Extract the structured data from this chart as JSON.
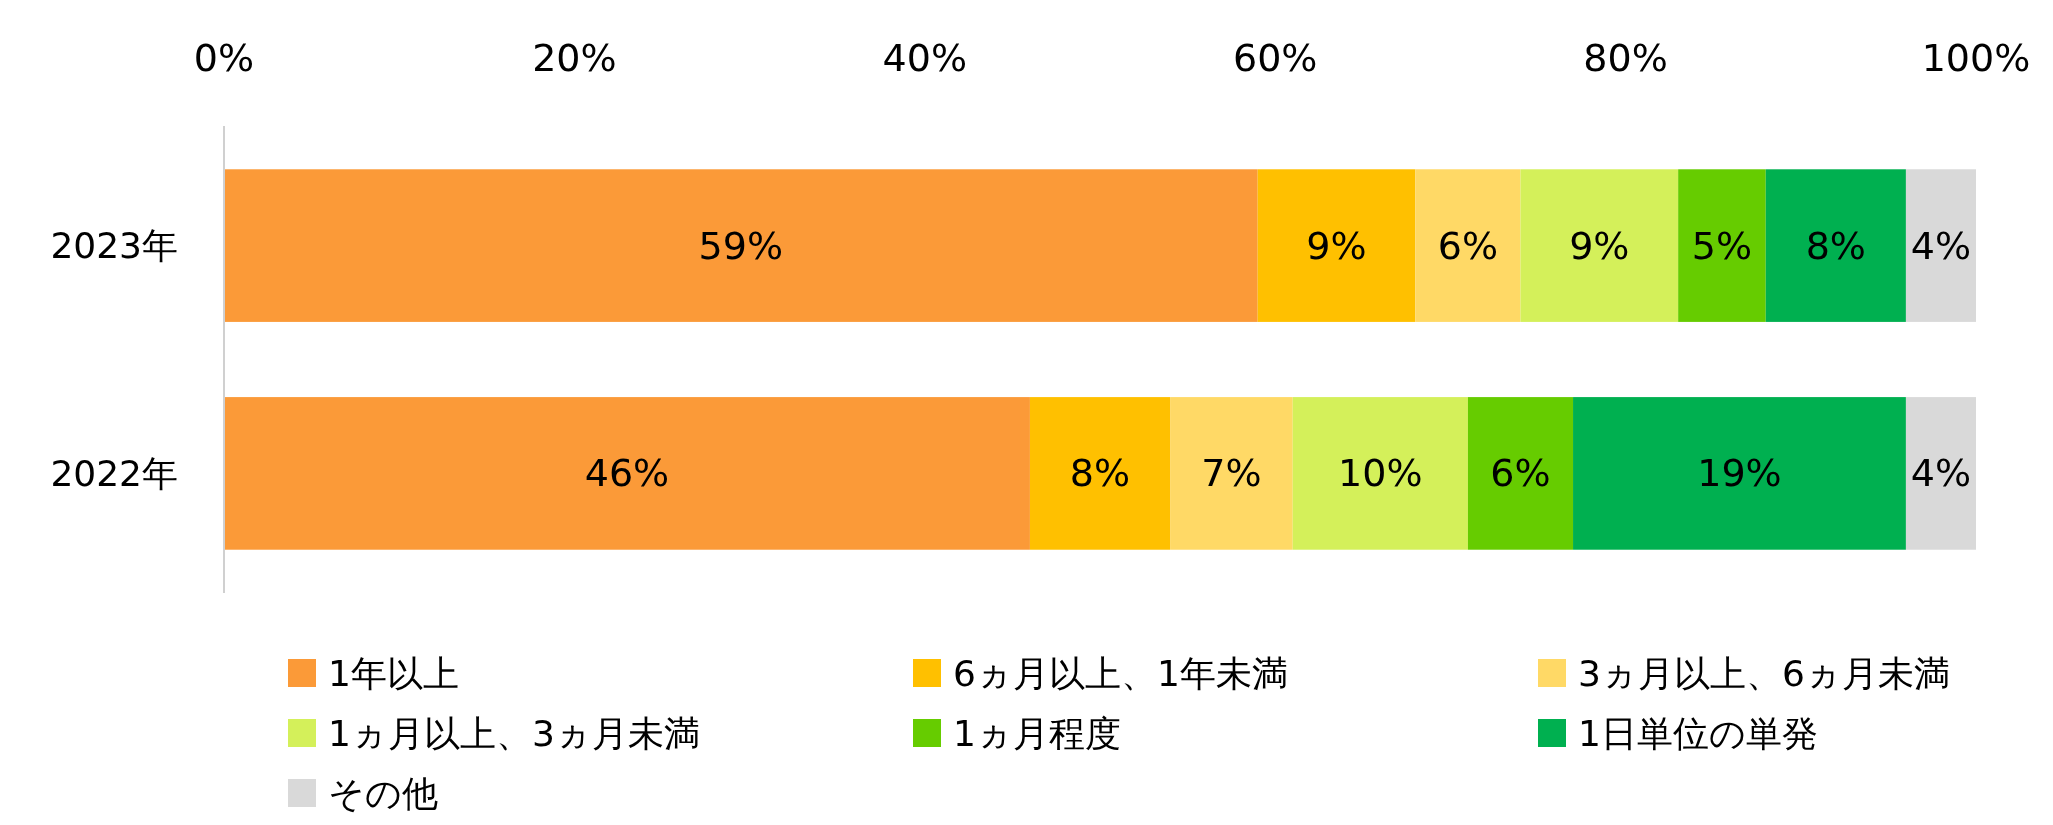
{
  "chart_data": {
    "type": "bar",
    "orientation": "horizontal",
    "stacked": true,
    "categories": [
      "2023年",
      "2022年"
    ],
    "xlim": [
      0,
      100
    ],
    "xticks": [
      {
        "value": 0,
        "label": "0%"
      },
      {
        "value": 20,
        "label": "20%"
      },
      {
        "value": 40,
        "label": "40%"
      },
      {
        "value": 60,
        "label": "60%"
      },
      {
        "value": 80,
        "label": "80%"
      },
      {
        "value": 100,
        "label": "100%"
      }
    ],
    "grid": false,
    "legend": "bottom",
    "series": [
      {
        "name": "1年以上",
        "color": "#fb9a38",
        "values": [
          59,
          46
        ],
        "value_labels": [
          "59%",
          "46%"
        ]
      },
      {
        "name": "6ヵ月以上、1年未満",
        "color": "#ffc000",
        "values": [
          9,
          8
        ],
        "value_labels": [
          "9%",
          "8%"
        ]
      },
      {
        "name": "3ヵ月以上、6ヵ月未満",
        "color": "#ffd966",
        "values": [
          6,
          7
        ],
        "value_labels": [
          "6%",
          "7%"
        ]
      },
      {
        "name": "1ヵ月以上、3ヵ月未満",
        "color": "#d4f05a",
        "values": [
          9,
          10
        ],
        "value_labels": [
          "9%",
          "10%"
        ]
      },
      {
        "name": "1ヵ月程度",
        "color": "#66cc00",
        "values": [
          5,
          6
        ],
        "value_labels": [
          "5%",
          "6%"
        ]
      },
      {
        "name": "1日単位の単発",
        "color": "#00b050",
        "values": [
          8,
          19
        ],
        "value_labels": [
          "8%",
          "19%"
        ]
      },
      {
        "name": "その他",
        "color": "#d9d9d9",
        "values": [
          4,
          4
        ],
        "value_labels": [
          "4%",
          "4%"
        ]
      }
    ]
  }
}
